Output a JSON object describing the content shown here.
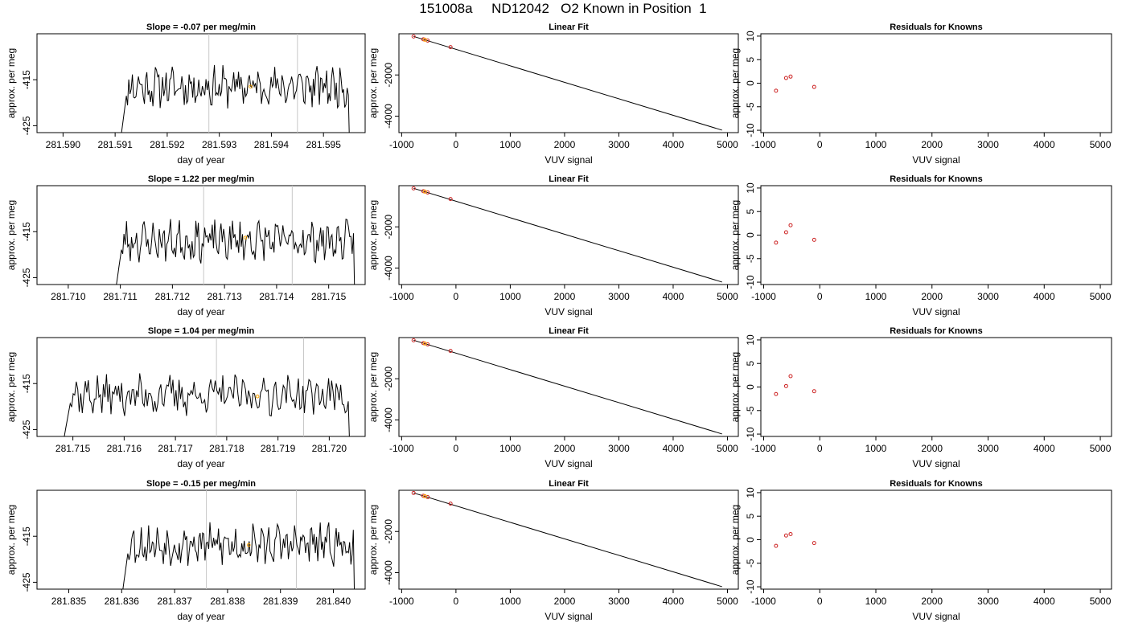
{
  "page_title": "151008a     ND12042   O2 Known in Position  1",
  "chart_data": [
    {
      "type": "line",
      "panel": "timeseries",
      "row": 1,
      "title": "Slope =  -0.07  per meg/min",
      "xlabel": "day of year",
      "ylabel": "approx. per meg",
      "xlim": [
        281.5895,
        281.5958
      ],
      "ylim": [
        -426.5,
        -405
      ],
      "xticks": [
        281.59,
        281.591,
        281.592,
        281.593,
        281.594,
        281.595
      ],
      "xtick_labels": [
        "281.590",
        "281.591",
        "281.592",
        "281.593",
        "281.594",
        "281.595"
      ],
      "yticks": [
        -415,
        -425
      ],
      "ytick_labels": [
        "-415",
        "-425"
      ],
      "vlines": [
        281.5928,
        281.5945
      ],
      "series_start": 281.5911,
      "series_end": 281.5955,
      "series_level": -416.5,
      "seed": 11,
      "highlight": {
        "x": 281.5936,
        "y": -416.5
      }
    },
    {
      "type": "scatter",
      "panel": "linear_fit",
      "row": 1,
      "title": "Linear Fit",
      "xlabel": "VUV signal",
      "ylabel": "approx. per meg",
      "xlim": [
        -1050,
        5200
      ],
      "ylim": [
        -4800,
        0
      ],
      "xticks": [
        -1000,
        0,
        1000,
        2000,
        3000,
        4000,
        5000
      ],
      "xtick_labels": [
        "-1000",
        "0",
        "1000",
        "2000",
        "3000",
        "4000",
        "5000"
      ],
      "yticks": [
        -2000,
        -4000
      ],
      "ytick_labels": [
        "-2000",
        "-4000"
      ],
      "points": [
        {
          "x": -780,
          "y": -130
        },
        {
          "x": -600,
          "y": -270
        },
        {
          "x": -520,
          "y": -330
        },
        {
          "x": -100,
          "y": -650
        }
      ],
      "highlight": {
        "x": -570,
        "y": -290
      },
      "fit_line": [
        {
          "x": -780,
          "y": -130
        },
        {
          "x": 4900,
          "y": -4680
        }
      ]
    },
    {
      "type": "scatter",
      "panel": "residuals",
      "row": 1,
      "title": "Residuals for Knowns",
      "xlabel": "VUV signal",
      "ylabel": "approx. per meg",
      "xlim": [
        -1050,
        5200
      ],
      "ylim": [
        -10.5,
        10.5
      ],
      "xticks": [
        -1000,
        0,
        1000,
        2000,
        3000,
        4000,
        5000
      ],
      "xtick_labels": [
        "-1000",
        "0",
        "1000",
        "2000",
        "3000",
        "4000",
        "5000"
      ],
      "yticks": [
        10,
        5,
        0,
        -5,
        -10
      ],
      "ytick_labels": [
        "10",
        "5",
        "0",
        "-5",
        "-10"
      ],
      "points": [
        {
          "x": -780,
          "y": -1.6
        },
        {
          "x": -600,
          "y": 1.1
        },
        {
          "x": -520,
          "y": 1.4
        },
        {
          "x": -100,
          "y": -0.8
        }
      ]
    },
    {
      "type": "line",
      "panel": "timeseries",
      "row": 2,
      "title": "Slope =  1.22  per meg/min",
      "xlabel": "day of year",
      "ylabel": "approx. per meg",
      "xlim": [
        281.7094,
        281.7157
      ],
      "ylim": [
        -426.5,
        -405
      ],
      "xticks": [
        281.71,
        281.711,
        281.712,
        281.713,
        281.714,
        281.715
      ],
      "xtick_labels": [
        "281.710",
        "281.711",
        "281.712",
        "281.713",
        "281.714",
        "281.715"
      ],
      "yticks": [
        -415,
        -425
      ],
      "ytick_labels": [
        "-415",
        "-425"
      ],
      "vlines": [
        281.7126,
        281.7143
      ],
      "series_start": 281.7109,
      "series_end": 281.7155,
      "series_level": -417,
      "seed": 23,
      "highlight": {
        "x": 281.7134,
        "y": -416.3
      }
    },
    {
      "type": "scatter",
      "panel": "linear_fit",
      "row": 2,
      "title": "Linear Fit",
      "xlabel": "VUV signal",
      "ylabel": "approx. per meg",
      "xlim": [
        -1050,
        5200
      ],
      "ylim": [
        -4800,
        0
      ],
      "xticks": [
        -1000,
        0,
        1000,
        2000,
        3000,
        4000,
        5000
      ],
      "xtick_labels": [
        "-1000",
        "0",
        "1000",
        "2000",
        "3000",
        "4000",
        "5000"
      ],
      "yticks": [
        -2000,
        -4000
      ],
      "ytick_labels": [
        "-2000",
        "-4000"
      ],
      "points": [
        {
          "x": -780,
          "y": -130
        },
        {
          "x": -600,
          "y": -270
        },
        {
          "x": -520,
          "y": -330
        },
        {
          "x": -100,
          "y": -650
        }
      ],
      "highlight": {
        "x": -570,
        "y": -290
      },
      "fit_line": [
        {
          "x": -780,
          "y": -130
        },
        {
          "x": 4900,
          "y": -4680
        }
      ]
    },
    {
      "type": "scatter",
      "panel": "residuals",
      "row": 2,
      "title": "Residuals for Knowns",
      "xlabel": "VUV signal",
      "ylabel": "approx. per meg",
      "xlim": [
        -1050,
        5200
      ],
      "ylim": [
        -10.5,
        10.5
      ],
      "xticks": [
        -1000,
        0,
        1000,
        2000,
        3000,
        4000,
        5000
      ],
      "xtick_labels": [
        "-1000",
        "0",
        "1000",
        "2000",
        "3000",
        "4000",
        "5000"
      ],
      "yticks": [
        10,
        5,
        0,
        -5,
        -10
      ],
      "ytick_labels": [
        "10",
        "5",
        "0",
        "-5",
        "-10"
      ],
      "points": [
        {
          "x": -780,
          "y": -1.6
        },
        {
          "x": -600,
          "y": 0.6
        },
        {
          "x": -520,
          "y": 2.1
        },
        {
          "x": -100,
          "y": -1.0
        }
      ]
    },
    {
      "type": "line",
      "panel": "timeseries",
      "row": 3,
      "title": "Slope =  1.04  per meg/min",
      "xlabel": "day of year",
      "ylabel": "approx. per meg",
      "xlim": [
        281.7143,
        281.7207
      ],
      "ylim": [
        -426.5,
        -405
      ],
      "xticks": [
        281.715,
        281.716,
        281.717,
        281.718,
        281.719,
        281.72
      ],
      "xtick_labels": [
        "281.715",
        "281.716",
        "281.717",
        "281.718",
        "281.719",
        "281.720"
      ],
      "yticks": [
        -415,
        -425
      ],
      "ytick_labels": [
        "-415",
        "-425"
      ],
      "vlines": [
        281.7178,
        281.7195
      ],
      "series_start": 281.7148,
      "series_end": 281.7204,
      "series_level": -417.5,
      "seed": 37,
      "highlight": {
        "x": 281.7186,
        "y": -417.8
      }
    },
    {
      "type": "scatter",
      "panel": "linear_fit",
      "row": 3,
      "title": "Linear Fit",
      "xlabel": "VUV signal",
      "ylabel": "approx. per meg",
      "xlim": [
        -1050,
        5200
      ],
      "ylim": [
        -4800,
        0
      ],
      "xticks": [
        -1000,
        0,
        1000,
        2000,
        3000,
        4000,
        5000
      ],
      "xtick_labels": [
        "-1000",
        "0",
        "1000",
        "2000",
        "3000",
        "4000",
        "5000"
      ],
      "yticks": [
        -2000,
        -4000
      ],
      "ytick_labels": [
        "-2000",
        "-4000"
      ],
      "points": [
        {
          "x": -780,
          "y": -130
        },
        {
          "x": -600,
          "y": -270
        },
        {
          "x": -520,
          "y": -330
        },
        {
          "x": -100,
          "y": -650
        }
      ],
      "highlight": {
        "x": -570,
        "y": -290
      },
      "fit_line": [
        {
          "x": -780,
          "y": -130
        },
        {
          "x": 4900,
          "y": -4680
        }
      ]
    },
    {
      "type": "scatter",
      "panel": "residuals",
      "row": 3,
      "title": "Residuals for Knowns",
      "xlabel": "VUV signal",
      "ylabel": "approx. per meg",
      "xlim": [
        -1050,
        5200
      ],
      "ylim": [
        -10.5,
        10.5
      ],
      "xticks": [
        -1000,
        0,
        1000,
        2000,
        3000,
        4000,
        5000
      ],
      "xtick_labels": [
        "-1000",
        "0",
        "1000",
        "2000",
        "3000",
        "4000",
        "5000"
      ],
      "yticks": [
        10,
        5,
        0,
        -5,
        -10
      ],
      "ytick_labels": [
        "10",
        "5",
        "0",
        "-5",
        "-10"
      ],
      "points": [
        {
          "x": -780,
          "y": -1.5
        },
        {
          "x": -600,
          "y": 0.2
        },
        {
          "x": -520,
          "y": 2.3
        },
        {
          "x": -100,
          "y": -0.9
        }
      ]
    },
    {
      "type": "line",
      "panel": "timeseries",
      "row": 4,
      "title": "Slope =  -0.15  per meg/min",
      "xlabel": "day of year",
      "ylabel": "approx. per meg",
      "xlim": [
        281.8344,
        281.8406
      ],
      "ylim": [
        -426.5,
        -405
      ],
      "xticks": [
        281.835,
        281.836,
        281.837,
        281.838,
        281.839,
        281.84
      ],
      "xtick_labels": [
        "281.835",
        "281.836",
        "281.837",
        "281.838",
        "281.839",
        "281.840"
      ],
      "yticks": [
        -415,
        -425
      ],
      "ytick_labels": [
        "-415",
        "-425"
      ],
      "vlines": [
        281.8376,
        281.8393
      ],
      "series_start": 281.836,
      "series_end": 281.8404,
      "series_level": -416.8,
      "seed": 53,
      "highlight": {
        "x": 281.8384,
        "y": -416.9
      }
    },
    {
      "type": "scatter",
      "panel": "linear_fit",
      "row": 4,
      "title": "Linear Fit",
      "xlabel": "VUV signal",
      "ylabel": "approx. per meg",
      "xlim": [
        -1050,
        5200
      ],
      "ylim": [
        -4800,
        0
      ],
      "xticks": [
        -1000,
        0,
        1000,
        2000,
        3000,
        4000,
        5000
      ],
      "xtick_labels": [
        "-1000",
        "0",
        "1000",
        "2000",
        "3000",
        "4000",
        "5000"
      ],
      "yticks": [
        -2000,
        -4000
      ],
      "ytick_labels": [
        "-2000",
        "-4000"
      ],
      "points": [
        {
          "x": -780,
          "y": -130
        },
        {
          "x": -600,
          "y": -270
        },
        {
          "x": -520,
          "y": -330
        },
        {
          "x": -100,
          "y": -650
        }
      ],
      "highlight": {
        "x": -570,
        "y": -290
      },
      "fit_line": [
        {
          "x": -780,
          "y": -130
        },
        {
          "x": 4900,
          "y": -4680
        }
      ]
    },
    {
      "type": "scatter",
      "panel": "residuals",
      "row": 4,
      "title": "Residuals for Knowns",
      "xlabel": "VUV signal",
      "ylabel": "approx. per meg",
      "xlim": [
        -1050,
        5200
      ],
      "ylim": [
        -10.5,
        10.5
      ],
      "xticks": [
        -1000,
        0,
        1000,
        2000,
        3000,
        4000,
        5000
      ],
      "xtick_labels": [
        "-1000",
        "0",
        "1000",
        "2000",
        "3000",
        "4000",
        "5000"
      ],
      "yticks": [
        10,
        5,
        0,
        -5,
        -10
      ],
      "ytick_labels": [
        "10",
        "5",
        "0",
        "-5",
        "-10"
      ],
      "points": [
        {
          "x": -780,
          "y": -1.3
        },
        {
          "x": -600,
          "y": 0.9
        },
        {
          "x": -520,
          "y": 1.2
        },
        {
          "x": -100,
          "y": -0.7
        }
      ]
    }
  ],
  "colors": {
    "line": "#000000",
    "point": "#cc2222",
    "highlight": "#ffa500",
    "vline": "#c8c8c8",
    "axis": "#000000"
  }
}
